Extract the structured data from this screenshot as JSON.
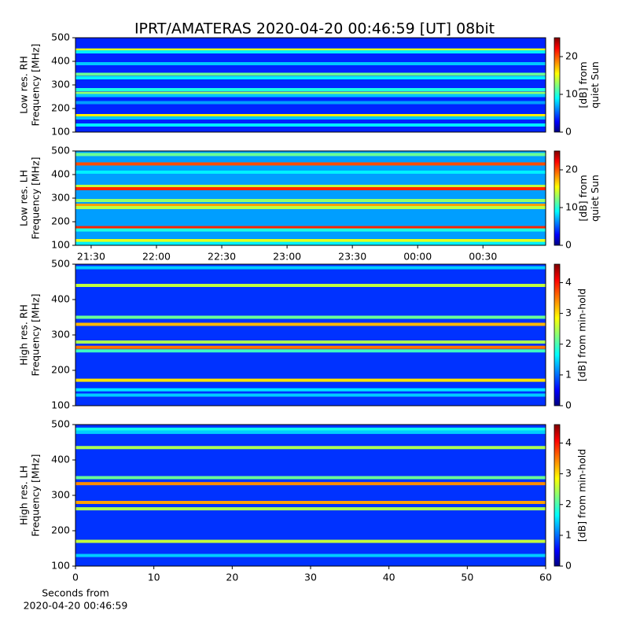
{
  "chart_data": [
    {
      "type": "heatmap",
      "title": "IPRT/AMATERAS 2020-04-20 00:46:59 [UT]   08bit",
      "ylabel": [
        "Low res. RH",
        "Frequency [MHz]"
      ],
      "ylim": [
        100,
        500
      ],
      "yticks": [
        100,
        200,
        300,
        400,
        500
      ],
      "xlim": [
        21.38,
        24.98
      ],
      "colorbar_label": [
        "[dB] from",
        "quiet Sun"
      ],
      "clim": [
        0,
        25
      ],
      "cticks": [
        0,
        10,
        20
      ],
      "background": 4,
      "bands": [
        {
          "freq": 448,
          "level": 15
        },
        {
          "freq": 440,
          "level": 9
        },
        {
          "freq": 390,
          "level": 8
        },
        {
          "freq": 345,
          "level": 12
        },
        {
          "freq": 330,
          "level": 9
        },
        {
          "freq": 280,
          "level": 10
        },
        {
          "freq": 265,
          "level": 13
        },
        {
          "freq": 255,
          "level": 8
        },
        {
          "freq": 225,
          "level": 7
        },
        {
          "freq": 170,
          "level": 16
        },
        {
          "freq": 160,
          "level": 8
        },
        {
          "freq": 130,
          "level": 9
        }
      ]
    },
    {
      "type": "heatmap",
      "ylabel": [
        "Low res. LH",
        "Frequency [MHz]"
      ],
      "ylim": [
        100,
        500
      ],
      "yticks": [
        100,
        200,
        300,
        400,
        500
      ],
      "xlim": [
        21.38,
        24.98
      ],
      "xticks": [
        {
          "value": 21.5,
          "label": "21:30"
        },
        {
          "value": 22,
          "label": "22:00"
        },
        {
          "value": 22.5,
          "label": "22:30"
        },
        {
          "value": 23,
          "label": "23:00"
        },
        {
          "value": 23.5,
          "label": "23:30"
        },
        {
          "value": 24,
          "label": "00:00"
        },
        {
          "value": 24.5,
          "label": "00:30"
        }
      ],
      "colorbar_label": [
        "[dB] from",
        "quiet Sun"
      ],
      "clim": [
        0,
        25
      ],
      "cticks": [
        0,
        10,
        20
      ],
      "background": 7,
      "bands": [
        {
          "freq": 485,
          "level": 12
        },
        {
          "freq": 445,
          "level": 20
        },
        {
          "freq": 410,
          "level": 9
        },
        {
          "freq": 350,
          "level": 14
        },
        {
          "freq": 340,
          "level": 21
        },
        {
          "freq": 290,
          "level": 13
        },
        {
          "freq": 270,
          "level": 18
        },
        {
          "freq": 260,
          "level": 14
        },
        {
          "freq": 175,
          "level": 21
        },
        {
          "freq": 165,
          "level": 10
        },
        {
          "freq": 120,
          "level": 15
        },
        {
          "freq": 108,
          "level": 9
        }
      ]
    },
    {
      "type": "heatmap",
      "ylabel": [
        "High res. RH",
        "Frequency [MHz]"
      ],
      "ylim": [
        100,
        500
      ],
      "yticks": [
        100,
        200,
        300,
        400,
        500
      ],
      "xlim": [
        0,
        60
      ],
      "colorbar_label": [
        "[dB] from min-hold"
      ],
      "clim": [
        0,
        4.6
      ],
      "cticks": [
        0,
        1,
        2,
        3,
        4
      ],
      "background": 0.8,
      "bands": [
        {
          "freq": 490,
          "level": 1.5
        },
        {
          "freq": 440,
          "level": 2.6
        },
        {
          "freq": 350,
          "level": 2.2
        },
        {
          "freq": 330,
          "level": 3.2
        },
        {
          "freq": 280,
          "level": 2.5
        },
        {
          "freq": 265,
          "level": 3.5
        },
        {
          "freq": 255,
          "level": 2
        },
        {
          "freq": 172,
          "level": 3
        },
        {
          "freq": 145,
          "level": 1.6
        },
        {
          "freq": 130,
          "level": 1.5
        }
      ]
    },
    {
      "type": "heatmap",
      "ylabel": [
        "High res. LH",
        "Frequency [MHz]"
      ],
      "ylim": [
        100,
        500
      ],
      "yticks": [
        100,
        200,
        300,
        400,
        500
      ],
      "xlim": [
        0,
        60
      ],
      "xticks": [
        0,
        10,
        20,
        30,
        40,
        50,
        60
      ],
      "xlabel": [
        "Seconds from",
        "2020-04-20 00:46:59"
      ],
      "colorbar_label": [
        "[dB] from min-hold"
      ],
      "clim": [
        0,
        4.6
      ],
      "cticks": [
        0,
        1,
        2,
        3,
        4
      ],
      "background": 0.8,
      "bands": [
        {
          "freq": 487,
          "level": 1.8
        },
        {
          "freq": 478,
          "level": 1.5
        },
        {
          "freq": 435,
          "level": 2.5
        },
        {
          "freq": 350,
          "level": 2.2
        },
        {
          "freq": 333,
          "level": 3.4
        },
        {
          "freq": 280,
          "level": 3.3
        },
        {
          "freq": 262,
          "level": 2.5
        },
        {
          "freq": 170,
          "level": 2.6
        },
        {
          "freq": 130,
          "level": 1.5
        }
      ]
    }
  ]
}
